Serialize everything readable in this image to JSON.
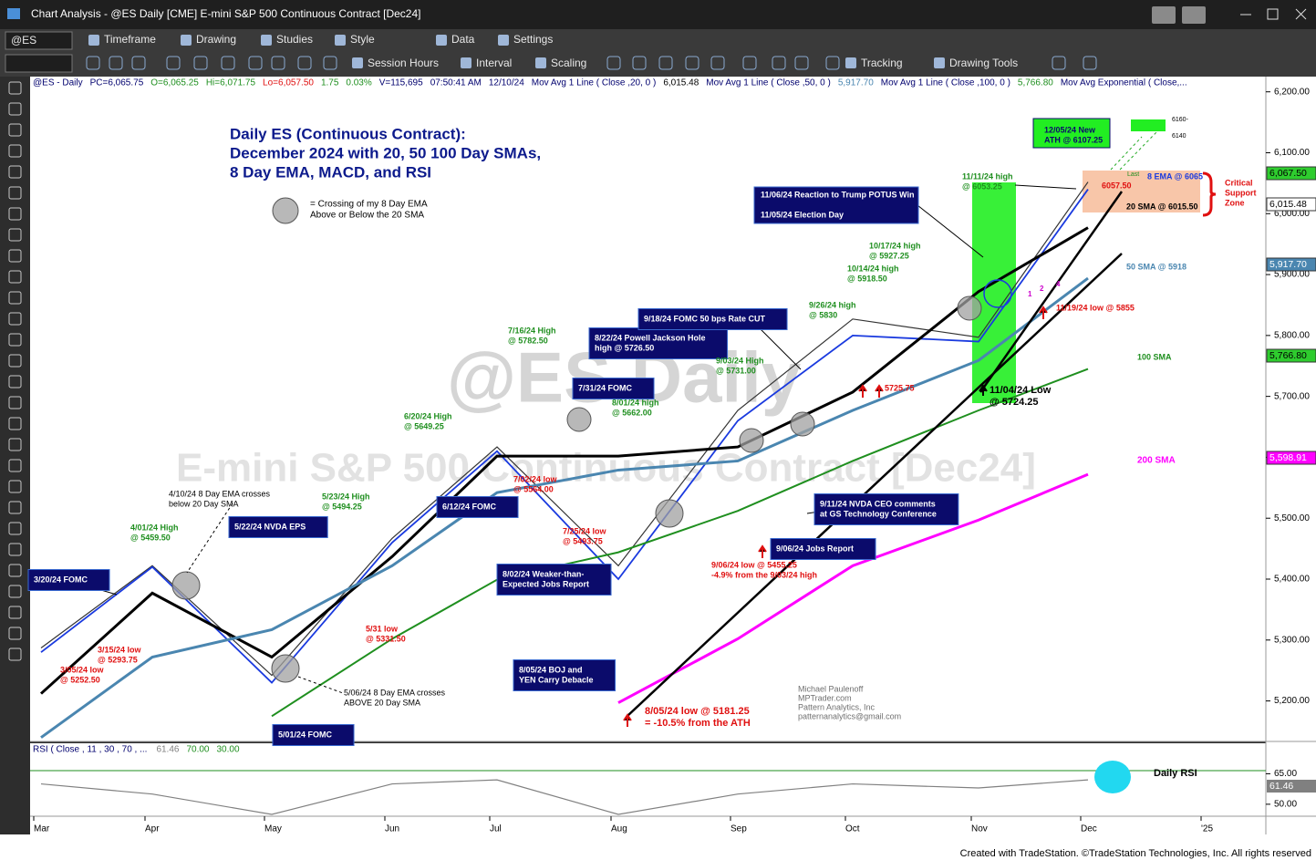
{
  "window": {
    "title": "Chart Analysis - @ES Daily [CME] E-mini S&P 500 Continuous Contract [Dec24]"
  },
  "toolbar": {
    "symbol": "@ES",
    "row1": [
      "Timeframe",
      "Drawing",
      "Studies",
      "Style",
      "Data",
      "Settings"
    ],
    "row2": [
      "Session Hours",
      "Interval",
      "Scaling",
      "Tracking",
      "Drawing Tools"
    ]
  },
  "status_line": [
    "@ES - Daily",
    "PC=6,065.75",
    "O=6,065.25",
    "Hi=6,071.75",
    "Lo=6,057.50",
    "1.75",
    "0.03%",
    "V=115,695",
    "07:50:41 AM",
    "12/10/24",
    "Mov Avg 1 Line ( Close ,20,  0 )",
    "6,015.48",
    "Mov Avg 1 Line ( Close ,50,  0 )",
    "5,917.70",
    "Mov Avg 1 Line ( Close ,100,  0 )",
    "5,766.80",
    "Mov Avg Exponential ( Close,..."
  ],
  "chart_data": [
    {
      "type": "line",
      "categories": [
        "Mar",
        "Apr",
        "May",
        "Jun",
        "Jul",
        "Aug",
        "Sep",
        "Oct",
        "Nov",
        "Dec",
        "'25"
      ],
      "series": [
        {
          "name": "Close",
          "color": "#333333",
          "values": [
            5287,
            5422,
            5242,
            5467,
            5617,
            5422,
            5677,
            5827,
            5797,
            6052,
            null
          ]
        },
        {
          "name": "8 EMA",
          "color": "#1a3adf",
          "values": [
            5280,
            5420,
            5230,
            5460,
            5610,
            5400,
            5660,
            5800,
            5790,
            6040,
            null
          ]
        },
        {
          "name": "20 SMA",
          "color": "#000000",
          "values": [
            5212,
            5377,
            5272,
            5437,
            5602,
            5602,
            5617,
            5707,
            5872,
            5977,
            null
          ]
        },
        {
          "name": "50 SMA",
          "color": "#4a86b0",
          "values": [
            5140,
            5272,
            5317,
            5422,
            5542,
            5579,
            5594,
            5677,
            5759,
            5894,
            null
          ]
        },
        {
          "name": "100 SMA",
          "color": "#1f8f1f",
          "values": [
            null,
            null,
            5175,
            5302,
            5399,
            5444,
            5512,
            5594,
            5677,
            5745,
            null
          ]
        },
        {
          "name": "200 SMA",
          "color": "#ff00ff",
          "values": [
            null,
            null,
            null,
            null,
            null,
            5197,
            5302,
            5422,
            5497,
            5572,
            null
          ]
        }
      ],
      "ylim": [
        5135,
        6225
      ],
      "yticks": [
        {
          "value": 5200,
          "label": "5,200.00"
        },
        {
          "value": 5300,
          "label": "5,300.00"
        },
        {
          "value": 5400,
          "label": "5,400.00"
        },
        {
          "value": 5500,
          "label": "5,500.00"
        },
        {
          "value": 5600,
          "label": "5,600.00"
        },
        {
          "value": 5700,
          "label": "5,700.00"
        },
        {
          "value": 5800,
          "label": "5,800.00"
        },
        {
          "value": 5900,
          "label": "5,900.00"
        },
        {
          "value": 6000,
          "label": "6,000.00"
        },
        {
          "value": 6100,
          "label": "6,100.00"
        },
        {
          "value": 6200,
          "label": "6,200.00"
        }
      ],
      "price_tags": [
        "6,067.50",
        "6,015.48",
        "5,917.70",
        "5,766.80",
        "5,598.91"
      ]
    },
    {
      "type": "line",
      "title": "RSI ( Close , 11 , 30 , 70 , ...",
      "header_values": [
        "61.46",
        "70.00",
        "30.00"
      ],
      "annotation": "Daily RSI",
      "series": [
        {
          "name": "RSI",
          "color": "#808080",
          "values": [
            60,
            55,
            45,
            60,
            62,
            45,
            55,
            60,
            58,
            62,
            null
          ]
        }
      ],
      "ylim": [
        45,
        80
      ],
      "yticks": [
        {
          "value": 50,
          "label": "50.00"
        },
        {
          "value": 65,
          "label": "65.00"
        }
      ],
      "last_tag": "61.46"
    }
  ],
  "annotations": [
    [
      "Daily ES (Continuous Contract):",
      "December 2024 with 20, 50 100 Day SMAs,",
      "8 Day EMA, MACD, and RSI"
    ],
    [
      "= Crossing of my 8 Day EMA",
      "Above or Below the 20 SMA"
    ],
    [
      "3/20/24 FOMC"
    ],
    [
      "5/22/24 NVDA EPS"
    ],
    [
      "6/12/24 FOMC"
    ],
    [
      "7/31/24 FOMC"
    ],
    [
      "8/22/24 Powell Jackson Hole",
      "high @ 5726.50"
    ],
    [
      "9/18/24 FOMC 50 bps Rate CUT"
    ],
    [
      "8/02/24 Weaker-than-",
      "Expected Jobs Report"
    ],
    [
      "8/05/24 BOJ and",
      "YEN Carry Debacle"
    ],
    [
      "5/01/24 FOMC"
    ],
    [
      "9/06/24 Jobs Report"
    ],
    [
      "9/11/24 NVDA CEO comments",
      "at GS Technology Conference"
    ],
    [
      "11/06/24 Reaction to Trump POTUS Win"
    ],
    [
      "11/05/24 Election Day"
    ],
    [
      "12/05/24 New",
      "ATH @ 6107.25"
    ],
    [
      "4/01/24 High",
      "@ 5459.50"
    ],
    [
      "5/23/24 High",
      "@ 5494.25"
    ],
    [
      "6/20/24 High",
      "@ 5649.25"
    ],
    [
      "7/16/24 High",
      "@ 5782.50"
    ],
    [
      "8/01/24 high",
      "@ 5662.00"
    ],
    [
      "9/03/24 High",
      "@ 5731.00"
    ],
    [
      "9/26/24 high",
      "@ 5830"
    ],
    [
      "10/14/24 high",
      "@ 5918.50"
    ],
    [
      "10/17/24 high",
      "@ 5927.25"
    ],
    [
      "11/11/24 high",
      "@ 6053.25"
    ],
    [
      "3/05/24 low",
      "@ 5252.50"
    ],
    [
      "3/15/24 low",
      "@ 5293.75"
    ],
    [
      "5/31 low",
      "@ 5331.50"
    ],
    [
      "7/02/24 low",
      "@ 5564.00"
    ],
    [
      "7/25/24 low",
      "@ 5493.75"
    ],
    [
      "9/06/24 low @ 5455.25",
      "-4.9% from the 9/03/24 high"
    ],
    [
      "5725.75"
    ],
    [
      "11/19/24 low @ 5855"
    ],
    [
      "8/05/24 low @ 5181.25",
      "= -10.5% from the ATH"
    ],
    [
      "6057.50"
    ],
    [
      "4/10/24 8 Day EMA crosses",
      "below 20 Day SMA"
    ],
    [
      "5/06/24 8 Day EMA crosses",
      "ABOVE 20 Day SMA"
    ],
    [
      "11/04/24 Low",
      "@ 5724.25"
    ],
    [
      "20 SMA @ 6015.50"
    ],
    [
      "8 EMA @ 6065"
    ],
    [
      "50 SMA @ 5918"
    ],
    [
      "100 SMA"
    ],
    [
      "200 SMA"
    ],
    [
      "Critical",
      "Support",
      "Zone"
    ],
    [
      "6160-"
    ],
    [
      "6140"
    ],
    [
      "Last"
    ],
    [
      "1"
    ],
    [
      "2"
    ],
    [
      "4"
    ],
    [
      "Michael Paulenoff",
      "MPTrader.com",
      "Pattern Analytics, Inc",
      "patternanalytics@gmail.com"
    ],
    [
      "@ES Daily"
    ],
    [
      "E-mini S&P 500 Continuous Contract [Dec24]"
    ]
  ],
  "footer": "Created with TradeStation. ©TradeStation Technologies, Inc. All rights reserved"
}
